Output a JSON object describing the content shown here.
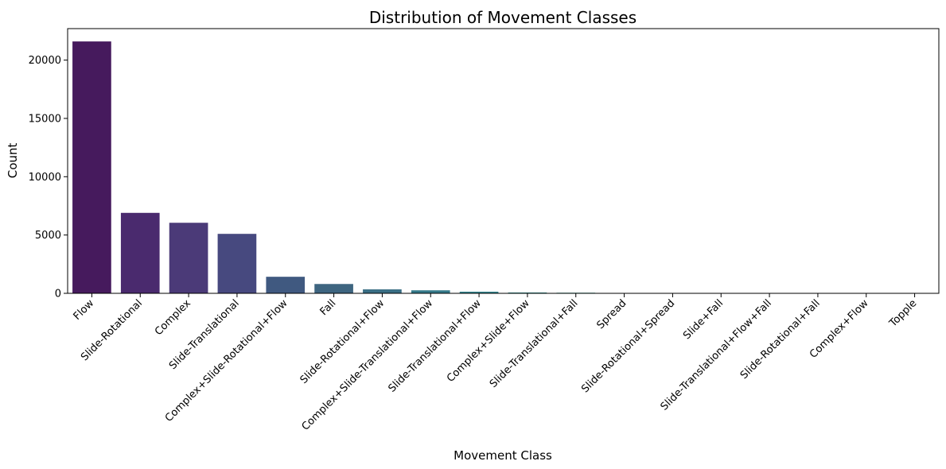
{
  "chart_data": {
    "type": "bar",
    "title": "Distribution of Movement Classes",
    "xlabel": "Movement Class",
    "ylabel": "Count",
    "ylim": [
      0,
      22700
    ],
    "yticks": [
      0,
      5000,
      10000,
      15000,
      20000
    ],
    "grid": false,
    "legend": "none",
    "categories": [
      "Flow",
      "Slide-Rotational",
      "Complex",
      "Slide-Translational",
      "Complex+Slide-Rotational+Flow",
      "Fall",
      "Slide-Rotational+Flow",
      "Complex+Slide-Translational+Flow",
      "Slide-Translational+Flow",
      "Complex+Slide+Flow",
      "Slide-Translational+Fall",
      "Spread",
      "Slide-Rotational+Spread",
      "Slide+Fall",
      "Slide-Translational+Flow+Fall",
      "Slide-Rotational+Fall",
      "Complex+Flow",
      "Topple"
    ],
    "values": [
      21600,
      6900,
      6050,
      5100,
      1420,
      800,
      340,
      260,
      140,
      70,
      50,
      30,
      10,
      5,
      4,
      3,
      2,
      1
    ],
    "colors": [
      "#461a5d",
      "#4a2a6e",
      "#4b3a78",
      "#47497f",
      "#405980",
      "#3e6580",
      "#3a6f85",
      "#357a8a",
      "#32838b",
      "#2f8e8c",
      "#2c988a",
      "#2ea385",
      "#37ad7f",
      "#47b676",
      "#5bbf6b",
      "#72c75e",
      "#8dce4e",
      "#a8d33f"
    ]
  }
}
